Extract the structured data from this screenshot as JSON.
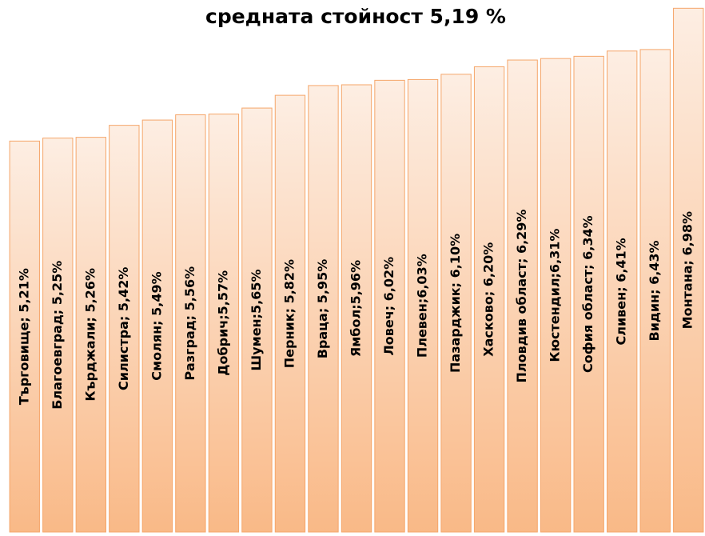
{
  "chart_data": {
    "type": "bar",
    "title": "средната стойност 5,19 %",
    "values": [
      5.21,
      5.25,
      5.26,
      5.42,
      5.49,
      5.56,
      5.57,
      5.65,
      5.82,
      5.95,
      5.96,
      6.02,
      6.03,
      6.1,
      6.2,
      6.29,
      6.31,
      6.34,
      6.41,
      6.43,
      6.98
    ],
    "value_labels": [
      "Търговище; 5,21%",
      "Благоевград; 5,25%",
      "Кърджали; 5,26%",
      "Силистра; 5,42%",
      "Смолян; 5,49%",
      "Разград; 5,56%",
      "Добрич;5,57%",
      "Шумен;5,65%",
      "Перник; 5,82%",
      "Враца; 5,95%",
      "Ямбол;5,96%",
      "Ловеч; 6,02%",
      "Плевен;6,03%",
      "Пазарджик; 6,10%",
      "Хасково; 6,20%",
      "Пловдив област; 6,29%",
      "Кюстендил;6,31%",
      "София област; 6,34%",
      "Сливен; 6,41%",
      "Видин; 6,43%",
      "Монтана; 6,98%"
    ],
    "color": "#f9b987",
    "ylim": [
      0,
      7.09
    ]
  }
}
